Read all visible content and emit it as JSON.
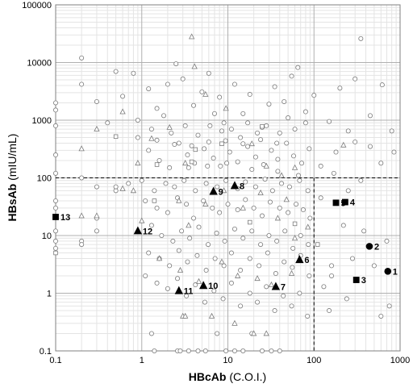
{
  "chart_data": {
    "type": "scatter",
    "x_scale": "log",
    "y_scale": "log",
    "xlim": [
      0.1,
      1000
    ],
    "ylim": [
      0.1,
      100000
    ],
    "grid": true,
    "x_ticks": [
      "0.1",
      "1",
      "10",
      "100",
      "1000"
    ],
    "y_ticks": [
      "0.1",
      "1",
      "10",
      "100",
      "1000",
      "10000",
      "100000"
    ],
    "x_axis_title": {
      "bold": "HBcAb",
      "unit": "(C.O.I.)"
    },
    "y_axis_title": {
      "bold": "HBsAb",
      "unit": "(mIU/mL)"
    },
    "cutoff_lines": {
      "x": 100,
      "y": 100
    },
    "background_points": {
      "circle": [
        [
          0.2,
          12000
        ],
        [
          0.2,
          4200
        ],
        [
          0.3,
          2100
        ],
        [
          0.4,
          900
        ],
        [
          0.5,
          7000
        ],
        [
          0.6,
          2600
        ],
        [
          0.8,
          6500
        ],
        [
          0.9,
          1000
        ],
        [
          1.2,
          3500
        ],
        [
          1.5,
          1600
        ],
        [
          2,
          4200
        ],
        [
          2.5,
          9500
        ],
        [
          3,
          5200
        ],
        [
          4,
          1800
        ],
        [
          5,
          3100
        ],
        [
          6,
          6500
        ],
        [
          7,
          1300
        ],
        [
          8,
          2500
        ],
        [
          9,
          900
        ],
        [
          12,
          4200
        ],
        [
          15,
          1300
        ],
        [
          18,
          2800
        ],
        [
          25,
          750
        ],
        [
          30,
          1900
        ],
        [
          35,
          3800
        ],
        [
          45,
          2100
        ],
        [
          55,
          5800
        ],
        [
          65,
          8200
        ],
        [
          80,
          1400
        ],
        [
          100,
          2700
        ],
        [
          150,
          950
        ],
        [
          200,
          3600
        ],
        [
          300,
          5200
        ],
        [
          450,
          1200
        ],
        [
          350,
          26000
        ],
        [
          620,
          4100
        ],
        [
          800,
          650
        ],
        [
          1.3,
          700
        ],
        [
          1.8,
          1200
        ],
        [
          2.2,
          600
        ],
        [
          3.2,
          800
        ],
        [
          4.5,
          550
        ],
        [
          6.2,
          800
        ],
        [
          8.5,
          650
        ],
        [
          11,
          700
        ],
        [
          14,
          500
        ],
        [
          17,
          900
        ],
        [
          22,
          600
        ],
        [
          28,
          800
        ],
        [
          40,
          600
        ],
        [
          60,
          700
        ],
        [
          0.2,
          100
        ],
        [
          0.3,
          70
        ],
        [
          0.5,
          60
        ],
        [
          0.7,
          80
        ],
        [
          1,
          90
        ],
        [
          1.4,
          60
        ],
        [
          1.9,
          80
        ],
        [
          2.4,
          70
        ],
        [
          3.1,
          90
        ],
        [
          4.2,
          60
        ],
        [
          5.6,
          80
        ],
        [
          7.5,
          70
        ],
        [
          9.5,
          90
        ],
        [
          13,
          65
        ],
        [
          16,
          85
        ],
        [
          21,
          70
        ],
        [
          27,
          95
        ],
        [
          33,
          60
        ],
        [
          42,
          80
        ],
        [
          52,
          70
        ],
        [
          68,
          90
        ],
        [
          85,
          60
        ],
        [
          1.2,
          300
        ],
        [
          1.6,
          200
        ],
        [
          2.1,
          150
        ],
        [
          2.7,
          400
        ],
        [
          3.4,
          250
        ],
        [
          4.1,
          180
        ],
        [
          5.3,
          320
        ],
        [
          6.8,
          220
        ],
        [
          8.2,
          160
        ],
        [
          10.5,
          280
        ],
        [
          13,
          190
        ],
        [
          17,
          350
        ],
        [
          21,
          230
        ],
        [
          26,
          170
        ],
        [
          32,
          300
        ],
        [
          38,
          210
        ],
        [
          48,
          400
        ],
        [
          58,
          240
        ],
        [
          72,
          180
        ],
        [
          88,
          320
        ],
        [
          1.1,
          40
        ],
        [
          1.5,
          30
        ],
        [
          2,
          25
        ],
        [
          2.6,
          45
        ],
        [
          3.3,
          35
        ],
        [
          4,
          20
        ],
        [
          5.2,
          40
        ],
        [
          6.6,
          30
        ],
        [
          8,
          25
        ],
        [
          10,
          35
        ],
        [
          13,
          28
        ],
        [
          16,
          42
        ],
        [
          20,
          30
        ],
        [
          25,
          22
        ],
        [
          31,
          38
        ],
        [
          40,
          30
        ],
        [
          50,
          25
        ],
        [
          62,
          35
        ],
        [
          75,
          28
        ],
        [
          90,
          20
        ],
        [
          1.3,
          15
        ],
        [
          1.7,
          10
        ],
        [
          2.3,
          8
        ],
        [
          2.9,
          12
        ],
        [
          3.6,
          9
        ],
        [
          4.6,
          14
        ],
        [
          5.9,
          7
        ],
        [
          7.4,
          11
        ],
        [
          9.2,
          8
        ],
        [
          12,
          13
        ],
        [
          15,
          9
        ],
        [
          19,
          12
        ],
        [
          24,
          7
        ],
        [
          30,
          10
        ],
        [
          37,
          8
        ],
        [
          46,
          12
        ],
        [
          57,
          6
        ],
        [
          70,
          10
        ],
        [
          86,
          7
        ],
        [
          1.2,
          5
        ],
        [
          1.6,
          4
        ],
        [
          2.1,
          3
        ],
        [
          2.7,
          5.5
        ],
        [
          3.4,
          3.5
        ],
        [
          4.4,
          4.5
        ],
        [
          5.6,
          2.5
        ],
        [
          7.1,
          4
        ],
        [
          9,
          3
        ],
        [
          11,
          5
        ],
        [
          14,
          2.5
        ],
        [
          18,
          4
        ],
        [
          23,
          3
        ],
        [
          29,
          5
        ],
        [
          36,
          2.2
        ],
        [
          45,
          3.5
        ],
        [
          56,
          2.8
        ],
        [
          70,
          4.5
        ],
        [
          88,
          2
        ],
        [
          1.1,
          2
        ],
        [
          1.5,
          1.5
        ],
        [
          2,
          1.2
        ],
        [
          2.6,
          1.8
        ],
        [
          3.3,
          0.9
        ],
        [
          4.2,
          1.4
        ],
        [
          5.4,
          0.7
        ],
        [
          6.9,
          1.1
        ],
        [
          8.8,
          0.8
        ],
        [
          11,
          1.5
        ],
        [
          14,
          0.6
        ],
        [
          18,
          1
        ],
        [
          22,
          0.7
        ],
        [
          28,
          1.3
        ],
        [
          35,
          0.5
        ],
        [
          44,
          0.9
        ],
        [
          55,
          0.6
        ],
        [
          68,
          1
        ],
        [
          84,
          0.4
        ],
        [
          1.3,
          0.2
        ],
        [
          1.4,
          0.1
        ],
        [
          2.6,
          0.1
        ],
        [
          2.8,
          0.1
        ],
        [
          3.5,
          0.1
        ],
        [
          4.5,
          0.1
        ],
        [
          5.5,
          0.1
        ],
        [
          7.5,
          0.2
        ],
        [
          9.5,
          0.1
        ],
        [
          12,
          0.1
        ],
        [
          15,
          0.1
        ],
        [
          19,
          0.2
        ],
        [
          25,
          0.1
        ],
        [
          32,
          0.1
        ],
        [
          40,
          0.1
        ],
        [
          0.1,
          2000
        ],
        [
          0.1,
          1500
        ],
        [
          0.1,
          800
        ],
        [
          0.1,
          250
        ],
        [
          0.1,
          120
        ],
        [
          0.1,
          40
        ],
        [
          0.1,
          30
        ],
        [
          0.1,
          12
        ],
        [
          0.1,
          8
        ],
        [
          0.1,
          6
        ],
        [
          0.2,
          8
        ],
        [
          0.2,
          7
        ],
        [
          0.3,
          20
        ],
        [
          0.3,
          12
        ],
        [
          0.5,
          70
        ],
        [
          150,
          0.5
        ],
        [
          240,
          0.8
        ],
        [
          600,
          0.4
        ],
        [
          750,
          0.6
        ],
        [
          850,
          280
        ],
        [
          450,
          350
        ],
        [
          600,
          180
        ],
        [
          300,
          420
        ],
        [
          170,
          120
        ],
        [
          250,
          60
        ],
        [
          350,
          90
        ],
        [
          120,
          45
        ],
        [
          220,
          15
        ],
        [
          380,
          12
        ],
        [
          700,
          8
        ],
        [
          160,
          3
        ],
        [
          280,
          4
        ],
        [
          500,
          3
        ],
        [
          160,
          2
        ],
        [
          130,
          1.3
        ],
        [
          250,
          650
        ],
        [
          180,
          280
        ],
        [
          120,
          160
        ],
        [
          3.5,
          150
        ],
        [
          5.8,
          160
        ],
        [
          9.7,
          180
        ],
        [
          19,
          140
        ],
        [
          38,
          130
        ],
        [
          66,
          110
        ],
        [
          0.9,
          500
        ],
        [
          1.5,
          450
        ],
        [
          2.4,
          380
        ],
        [
          3.8,
          360
        ],
        [
          6,
          420
        ],
        [
          9.4,
          440
        ],
        [
          15,
          390
        ],
        [
          24,
          460
        ],
        [
          37,
          400
        ],
        [
          50,
          1100
        ],
        [
          80,
          900
        ]
      ],
      "triangle": [
        [
          0.2,
          320
        ],
        [
          0.3,
          700
        ],
        [
          0.6,
          1400
        ],
        [
          0.9,
          180
        ],
        [
          1.3,
          480
        ],
        [
          2.1,
          750
        ],
        [
          3.2,
          180
        ],
        [
          3.8,
          28000
        ],
        [
          4.1,
          8500
        ],
        [
          5.5,
          2800
        ],
        [
          9.5,
          1600
        ],
        [
          19,
          390
        ],
        [
          28,
          160
        ],
        [
          42,
          110
        ],
        [
          60,
          150
        ],
        [
          220,
          370
        ],
        [
          0.8,
          60
        ],
        [
          2.7,
          40
        ],
        [
          3.5,
          15
        ],
        [
          5.5,
          35
        ],
        [
          9,
          60
        ],
        [
          15,
          30
        ],
        [
          24,
          55
        ],
        [
          38,
          20
        ],
        [
          48,
          42
        ],
        [
          60,
          9
        ],
        [
          85,
          14
        ],
        [
          1.6,
          4
        ],
        [
          2.8,
          2.5
        ],
        [
          4.6,
          1.6
        ],
        [
          8.5,
          3.5
        ],
        [
          13,
          2
        ],
        [
          22,
          1.8
        ],
        [
          32,
          1.4
        ],
        [
          55,
          2.2
        ],
        [
          0.2,
          22
        ],
        [
          0.3,
          22
        ],
        [
          0.6,
          65
        ],
        [
          1,
          18
        ],
        [
          3,
          0.4
        ],
        [
          6.5,
          0.4
        ],
        [
          12,
          0.3
        ],
        [
          20,
          0.2
        ],
        [
          28,
          0.2
        ],
        [
          3.2,
          0.4
        ]
      ],
      "square": [
        [
          0.1,
          5
        ],
        [
          0.5,
          520
        ],
        [
          1.5,
          170
        ],
        [
          3.8,
          190
        ],
        [
          8.5,
          390
        ],
        [
          25,
          780
        ],
        [
          110,
          7
        ],
        [
          1.4,
          40
        ],
        [
          18,
          17
        ],
        [
          60,
          16
        ],
        [
          4.2,
          310
        ]
      ]
    },
    "highlighted_points": [
      {
        "label": "1",
        "shape": "circle",
        "x": 720,
        "y": 2.4
      },
      {
        "label": "2",
        "shape": "circle",
        "x": 440,
        "y": 6.5
      },
      {
        "label": "3",
        "shape": "square",
        "x": 310,
        "y": 1.7
      },
      {
        "label": "4",
        "shape": "square",
        "x": 230,
        "y": 38
      },
      {
        "label": "5",
        "shape": "square",
        "x": 180,
        "y": 37
      },
      {
        "label": "6",
        "shape": "triangle",
        "x": 68,
        "y": 3.8
      },
      {
        "label": "7",
        "shape": "triangle",
        "x": 36,
        "y": 1.3
      },
      {
        "label": "8",
        "shape": "triangle",
        "x": 12,
        "y": 73
      },
      {
        "label": "9",
        "shape": "triangle",
        "x": 6.8,
        "y": 58
      },
      {
        "label": "10",
        "shape": "triangle",
        "x": 5.2,
        "y": 1.35
      },
      {
        "label": "11",
        "shape": "triangle",
        "x": 2.7,
        "y": 1.1
      },
      {
        "label": "12",
        "shape": "triangle",
        "x": 0.9,
        "y": 12
      },
      {
        "label": "13",
        "shape": "square",
        "x": 0.1,
        "y": 21
      }
    ]
  }
}
